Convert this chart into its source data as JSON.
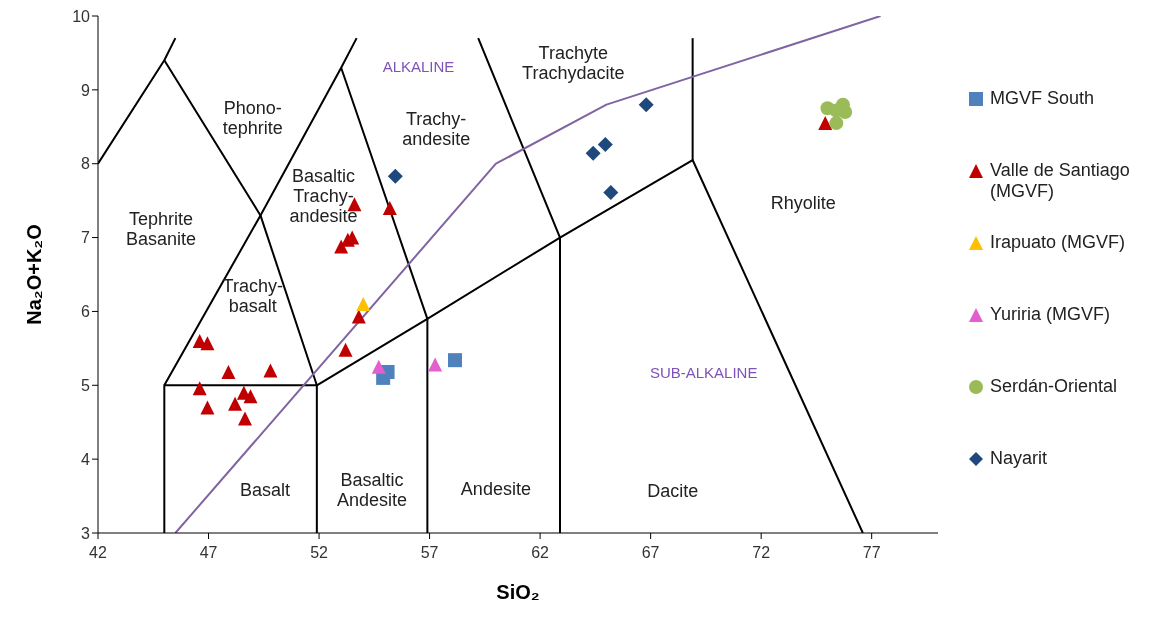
{
  "chart_data": {
    "type": "scatter",
    "xlabel": "SiO₂",
    "ylabel": "Na₂O+K₂O",
    "xlim": [
      42,
      80
    ],
    "xticks": [
      42,
      47,
      52,
      57,
      62,
      67,
      72,
      77
    ],
    "ylim": [
      3,
      10
    ],
    "yticks": [
      3,
      4,
      5,
      6,
      7,
      8,
      9,
      10
    ],
    "grid": false,
    "legend": "right",
    "series": [
      {
        "type": "line",
        "color": "#000000",
        "x": [
          42,
          45,
          45.5
        ],
        "values": [
          8,
          9.4,
          9.7
        ]
      },
      {
        "type": "line",
        "color": "#000000",
        "x": [
          45,
          49.35,
          51.9
        ],
        "values": [
          9.4,
          7.3,
          5
        ]
      },
      {
        "type": "line",
        "color": "#000000",
        "x": [
          45,
          49.35,
          53,
          53.7
        ],
        "values": [
          5,
          7.3,
          9.3,
          9.7
        ]
      },
      {
        "type": "line",
        "color": "#000000",
        "x": [
          53,
          56.9,
          56.9
        ],
        "values": [
          9.3,
          5.9,
          3
        ]
      },
      {
        "type": "line",
        "color": "#000000",
        "x": [
          51.9,
          56.9,
          62.9,
          68.9,
          76.6
        ],
        "values": [
          5,
          5.9,
          7,
          8.05,
          3
        ]
      },
      {
        "type": "line",
        "color": "#000000",
        "x": [
          68.9,
          68.9
        ],
        "values": [
          8.05,
          9.7
        ]
      },
      {
        "type": "line",
        "color": "#000000",
        "x": [
          59.2,
          62.9,
          62.9
        ],
        "values": [
          9.7,
          7,
          3
        ]
      },
      {
        "type": "line",
        "color": "#000000",
        "x": [
          45,
          45,
          51.9,
          51.9
        ],
        "values": [
          3,
          5,
          5,
          3
        ]
      },
      {
        "type": "line",
        "color": "#8064a2",
        "x": [
          45.5,
          60,
          65,
          77.4
        ],
        "values": [
          3,
          8,
          8.8,
          10
        ]
      },
      {
        "name": "MGVF South",
        "marker": "square",
        "color": "#4f81bd",
        "x": [
          55.1,
          54.9,
          58.15
        ],
        "values": [
          5.18,
          5.1,
          5.34
        ]
      },
      {
        "name": "Valle de Santiago (MGVF)",
        "marker": "triangle",
        "color": "#c00000",
        "x": [
          53.6,
          55.2,
          53.0,
          53.3,
          53.5,
          53.8,
          53.2,
          46.6,
          46.95,
          47.9,
          49.8,
          46.6,
          46.95,
          48.6,
          48.2,
          48.9,
          48.65,
          74.9
        ],
        "values": [
          7.45,
          7.4,
          6.88,
          6.97,
          7.0,
          5.93,
          5.48,
          5.6,
          5.57,
          5.18,
          5.2,
          4.96,
          4.7,
          4.9,
          4.75,
          4.85,
          4.55,
          8.55
        ]
      },
      {
        "name": "Irapuato (MGVF)",
        "marker": "triangle",
        "color": "#ffc000",
        "x": [
          54.0
        ],
        "values": [
          6.1
        ]
      },
      {
        "name": "Yuriria (MGVF)",
        "marker": "triangle",
        "color": "#e35fd0",
        "x": [
          54.7,
          57.25
        ],
        "values": [
          5.25,
          5.28
        ]
      },
      {
        "name": "Serdán-Oriental",
        "marker": "circle",
        "color": "#9bbb59",
        "x": [
          75.0,
          75.4,
          75.7,
          75.8,
          75.4
        ],
        "values": [
          8.75,
          8.72,
          8.8,
          8.7,
          8.55
        ]
      },
      {
        "name": "Nayarit",
        "marker": "diamond",
        "color": "#1f497d",
        "x": [
          55.45,
          64.4,
          64.95,
          65.2,
          66.8
        ],
        "values": [
          7.83,
          8.14,
          8.26,
          7.61,
          8.8
        ]
      }
    ],
    "annotations": [
      "Phono-\ntephrite",
      "ALKALINE",
      "Trachyte\nTrachydacite",
      "Trachy-\nandesite",
      "Basaltic\nTrachy-\nandesite",
      "Tephrite\nBasanite",
      "Trachy-\nbasalt",
      "Rhyolite",
      "SUB-ALKALINE",
      "Basalt",
      "Basaltic\nAndesite",
      "Andesite",
      "Dacite"
    ]
  }
}
